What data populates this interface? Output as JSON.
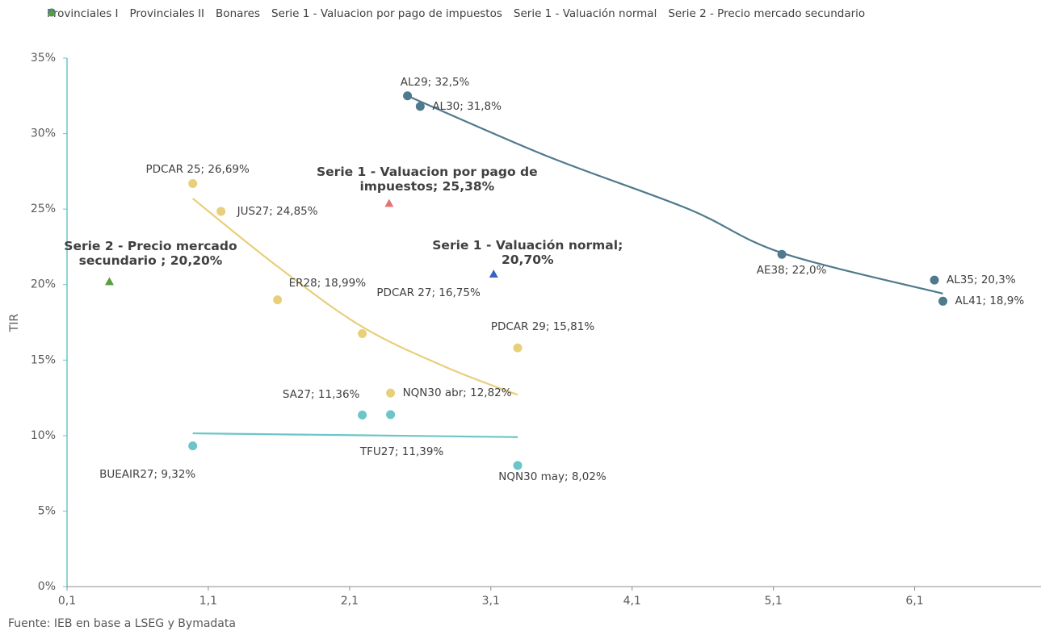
{
  "chart_data": {
    "type": "scatter",
    "y_axis_label": "TIR",
    "source": "Fuente: IEB en base a LSEG y Bymadata",
    "xlim": [
      0.1,
      7.0
    ],
    "xticks": [
      {
        "value": 0.1,
        "label": "0,1"
      },
      {
        "value": 1.1,
        "label": "1,1"
      },
      {
        "value": 2.1,
        "label": "2,1"
      },
      {
        "value": 3.1,
        "label": "3,1"
      },
      {
        "value": 4.1,
        "label": "4,1"
      },
      {
        "value": 5.1,
        "label": "5,1"
      },
      {
        "value": 6.1,
        "label": "6,1"
      }
    ],
    "ylim": [
      0,
      35
    ],
    "yticks": [
      {
        "value": 0,
        "label": "0%"
      },
      {
        "value": 5,
        "label": "5%"
      },
      {
        "value": 10,
        "label": "10%"
      },
      {
        "value": 15,
        "label": "15%"
      },
      {
        "value": 20,
        "label": "20%"
      },
      {
        "value": 25,
        "label": "25%"
      },
      {
        "value": 30,
        "label": "30%"
      },
      {
        "value": 35,
        "label": "35%"
      }
    ],
    "series": [
      {
        "name": "Provinciales I",
        "color": "#6cc5c8",
        "marker": "circle",
        "x": [
          0.99,
          2.19,
          2.39,
          3.29
        ],
        "values": [
          9.32,
          11.36,
          11.39,
          8.02
        ],
        "point_labels": [
          "BUEAIR27; 9,32%",
          "SA27; 11,36%",
          "TFU27; 11,39%",
          "NQN30 may; 8,02%"
        ]
      },
      {
        "name": "Provinciales II",
        "color": "#e8cf7a",
        "marker": "circle",
        "x": [
          0.99,
          1.19,
          1.59,
          2.19,
          2.39,
          3.29
        ],
        "values": [
          26.69,
          24.85,
          18.99,
          16.75,
          12.82,
          15.81
        ],
        "point_labels": [
          "PDCAR 25; 26,69%",
          "JUS27; 24,85%",
          "ER28; 18,99%",
          "PDCAR 27; 16,75%",
          "NQN30 abr; 12,82%",
          "PDCAR 29; 15,81%"
        ]
      },
      {
        "name": "Bonares",
        "color": "#4e7a8c",
        "marker": "circle",
        "x": [
          2.51,
          2.6,
          5.16,
          6.24,
          6.3
        ],
        "values": [
          32.5,
          31.8,
          22.0,
          20.3,
          18.9
        ],
        "point_labels": [
          "AL29; 32,5%",
          "AL30; 31,8%",
          "AE38; 22,0%",
          "AL35; 20,3%",
          "AL41; 18,9%"
        ]
      },
      {
        "name": "Serie 1 - Valuacion por pago de impuestos",
        "color": "#e57373",
        "marker": "triangle",
        "x": [
          2.38
        ],
        "values": [
          25.38
        ],
        "point_labels": [
          "Serie 1 - Valuacion por pago de impuestos; 25,38%"
        ]
      },
      {
        "name": "Serie 1 - Valuación normal",
        "color": "#3a62c0",
        "marker": "triangle",
        "x": [
          3.12
        ],
        "values": [
          20.7
        ],
        "point_labels": [
          "Serie 1 - Valuación normal; 20,70%"
        ]
      },
      {
        "name": "Serie 2 - Precio mercado secundario",
        "color": "#5a9e3c",
        "marker": "triangle",
        "x": [
          0.4
        ],
        "values": [
          20.2
        ],
        "point_labels": [
          "Serie 2 - Precio mercado secundario ; 20,20%"
        ]
      }
    ],
    "trendlines": [
      {
        "color": "#6cc5c8",
        "x": [
          0.99,
          3.29
        ],
        "values": [
          10.15,
          9.9
        ]
      },
      {
        "color": "#e8cf7a",
        "x": [
          0.99,
          1.59,
          2.19,
          2.79,
          3.29
        ],
        "values": [
          25.7,
          21.2,
          17.2,
          14.5,
          12.7
        ]
      },
      {
        "color": "#4e7a8c",
        "x": [
          2.51,
          3.5,
          4.5,
          5.16,
          6.3
        ],
        "values": [
          32.5,
          28.5,
          25.0,
          22.1,
          19.4
        ]
      }
    ]
  }
}
